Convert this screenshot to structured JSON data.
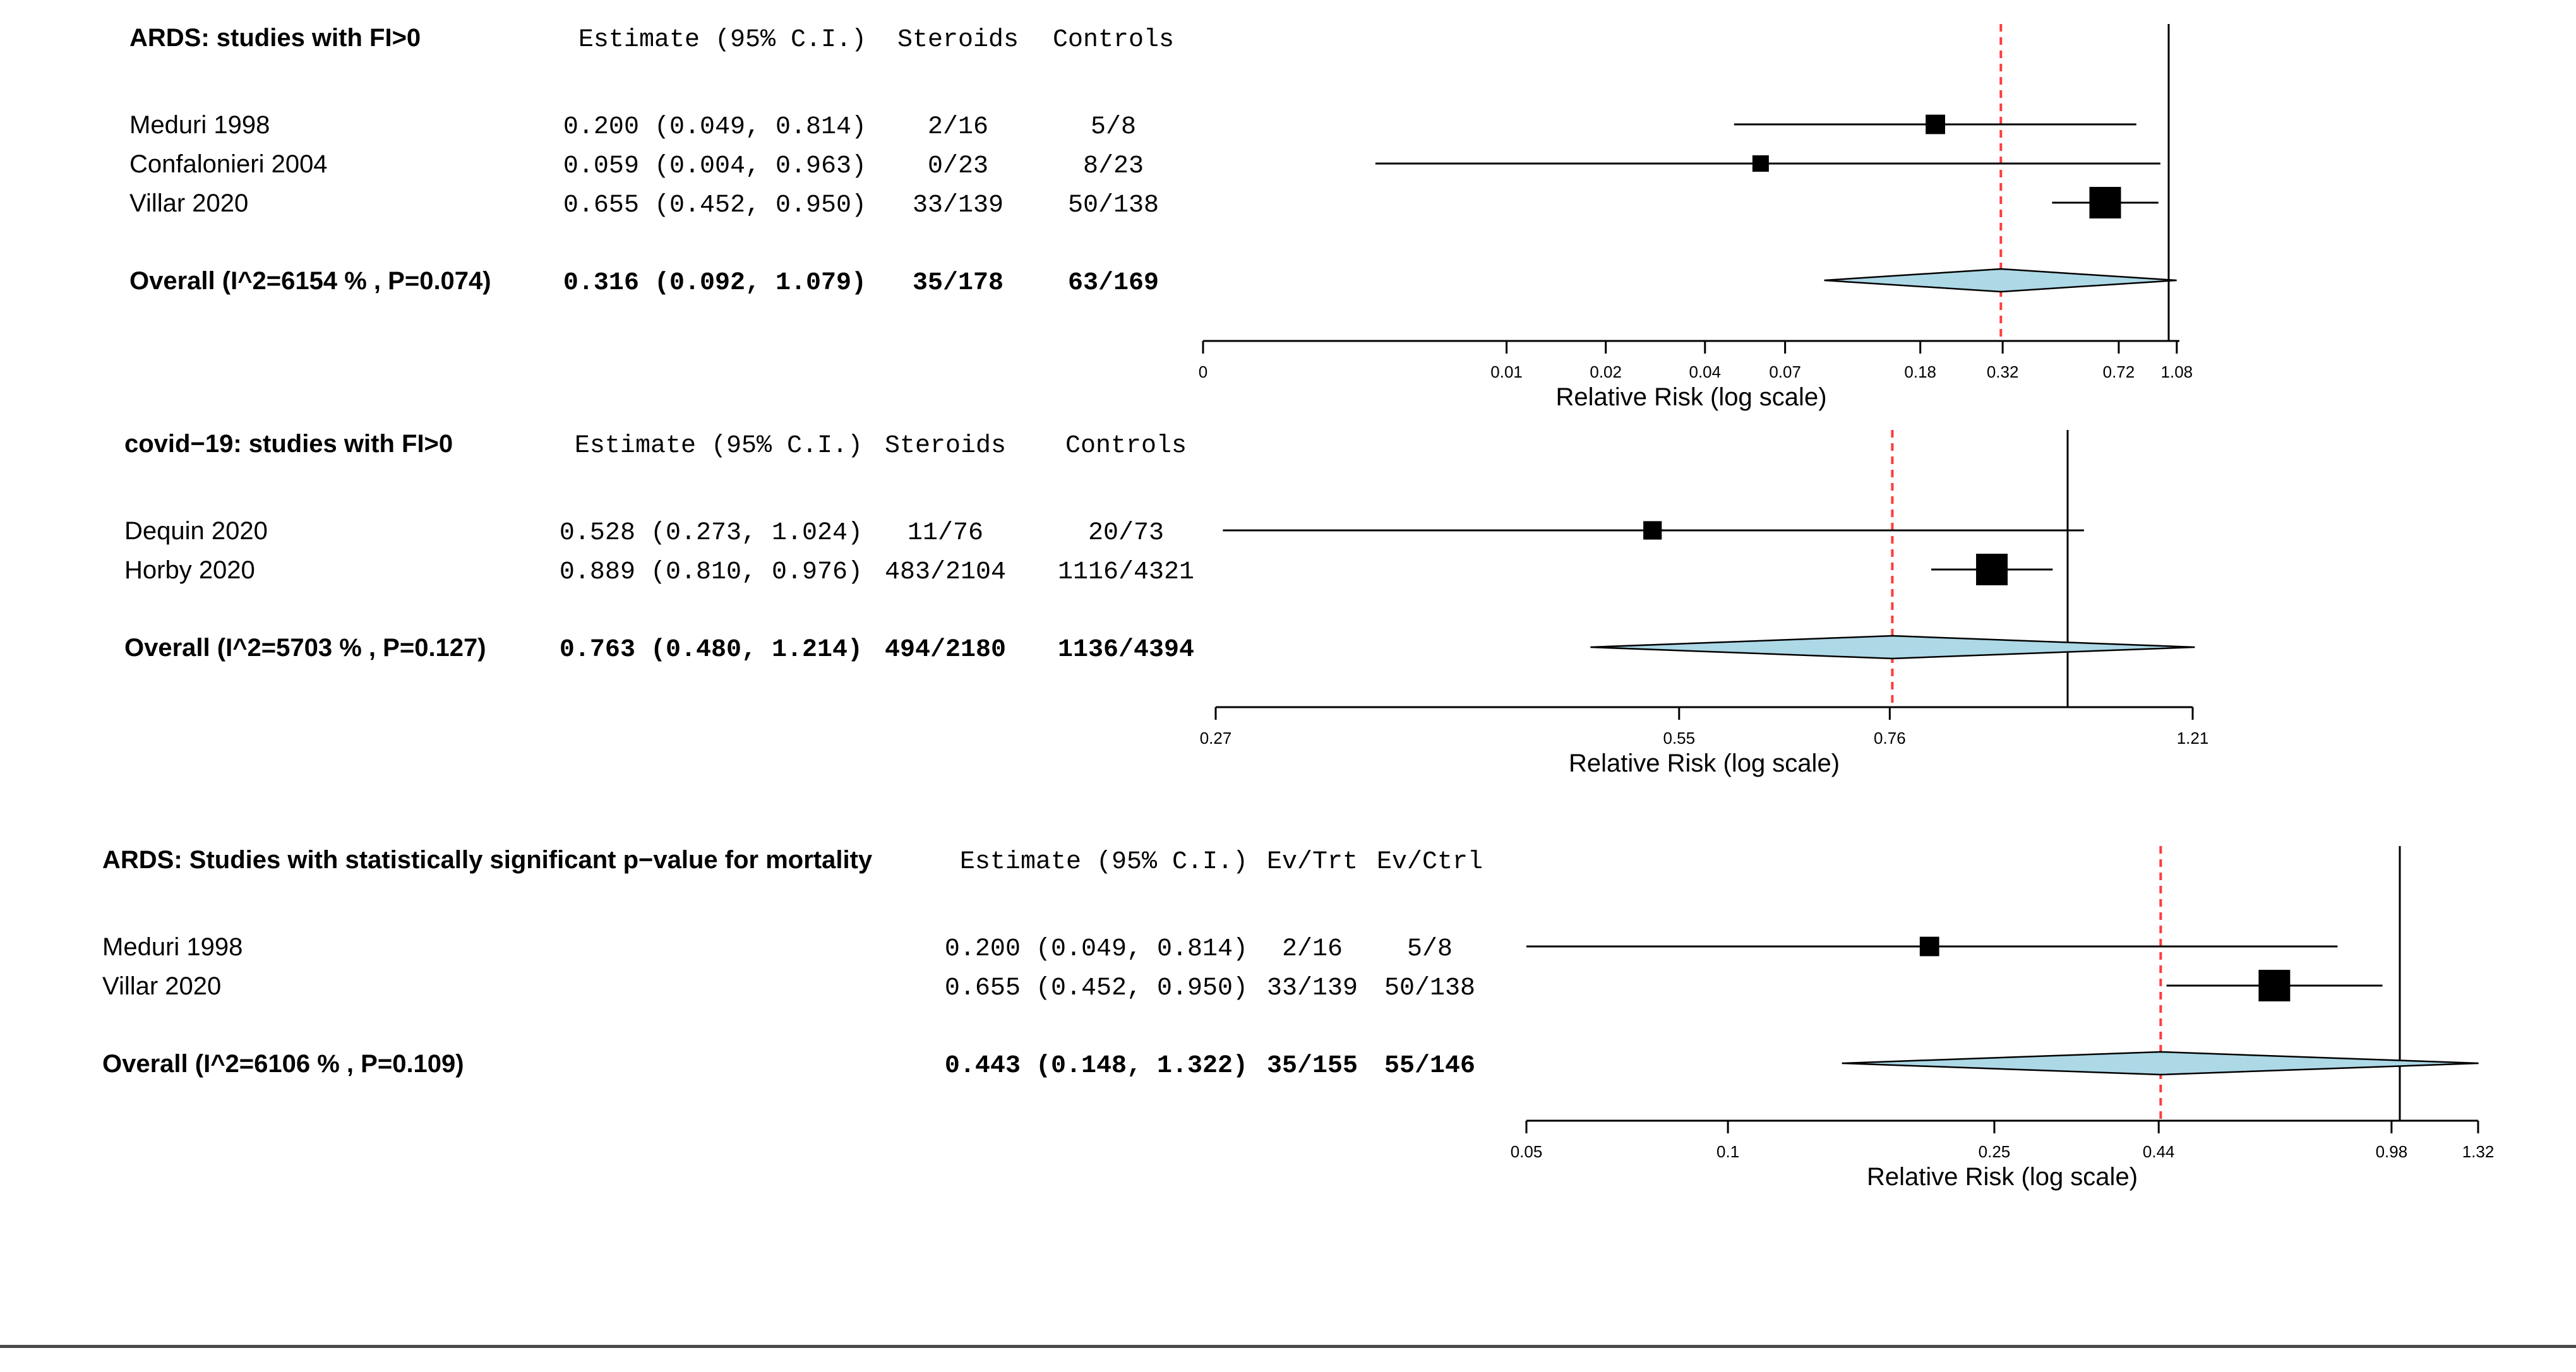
{
  "chart_data": [
    {
      "type": "forest",
      "title": "ARDS: studies with FI>0",
      "columns": {
        "estimate": "Estimate (95% C.I.)",
        "arm1": "Steroids",
        "arm2": "Controls"
      },
      "xlabel": "Relative Risk (log scale)",
      "xlim": [
        0.0012,
        1.1
      ],
      "ticks": [
        {
          "value": 0.0012,
          "label": "0"
        },
        {
          "value": 0.01,
          "label": "0.01"
        },
        {
          "value": 0.02,
          "label": "0.02"
        },
        {
          "value": 0.04,
          "label": "0.04"
        },
        {
          "value": 0.07,
          "label": "0.07"
        },
        {
          "value": 0.18,
          "label": "0.18"
        },
        {
          "value": 0.32,
          "label": "0.32"
        },
        {
          "value": 0.72,
          "label": "0.72"
        },
        {
          "value": 1.08,
          "label": "1.08"
        }
      ],
      "null_line": 1.0,
      "ref_line": 0.316,
      "studies": [
        {
          "name": "Meduri 1998",
          "estimate_text": "0.200 (0.049, 0.814)",
          "arm1": "2/16",
          "arm2": "5/8",
          "est": 0.2,
          "lo": 0.049,
          "hi": 0.814,
          "weight": 0.4
        },
        {
          "name": "Confalonieri 2004",
          "estimate_text": "0.059 (0.004, 0.963)",
          "arm1": "0/23",
          "arm2": "8/23",
          "est": 0.059,
          "lo": 0.004,
          "hi": 0.963,
          "weight": 0.25
        },
        {
          "name": "Villar 2020",
          "estimate_text": "0.655 (0.452, 0.950)",
          "arm1": "33/139",
          "arm2": "50/138",
          "est": 0.655,
          "lo": 0.452,
          "hi": 0.95,
          "weight": 1.0
        }
      ],
      "overall": {
        "name": "Overall (I^2=6154 % , P=0.074)",
        "estimate_text": "0.316 (0.092, 1.079)",
        "arm1": "35/178",
        "arm2": "63/169",
        "est": 0.316,
        "lo": 0.092,
        "hi": 1.079
      }
    },
    {
      "type": "forest",
      "title": "covid−19: studies with FI>0",
      "columns": {
        "estimate": "Estimate (95% C.I.)",
        "arm1": "Steroids",
        "arm2": "Controls"
      },
      "xlabel": "Relative Risk (log scale)",
      "xlim": [
        0.27,
        1.21
      ],
      "ticks": [
        {
          "value": 0.27,
          "label": "0.27"
        },
        {
          "value": 0.55,
          "label": "0.55"
        },
        {
          "value": 0.76,
          "label": "0.76"
        },
        {
          "value": 1.21,
          "label": "1.21"
        }
      ],
      "null_line": 1.0,
      "ref_line": 0.763,
      "studies": [
        {
          "name": "Dequin 2020",
          "estimate_text": "0.528 (0.273, 1.024)",
          "arm1": "11/76",
          "arm2": "20/73",
          "est": 0.528,
          "lo": 0.273,
          "hi": 1.024,
          "weight": 0.35
        },
        {
          "name": "Horby 2020",
          "estimate_text": "0.889 (0.810, 0.976)",
          "arm1": "483/2104",
          "arm2": "1116/4321",
          "est": 0.889,
          "lo": 0.81,
          "hi": 0.976,
          "weight": 1.0
        }
      ],
      "overall": {
        "name": "Overall (I^2=5703 % , P=0.127)",
        "estimate_text": "0.763 (0.480, 1.214)",
        "arm1": "494/2180",
        "arm2": "1136/4394",
        "est": 0.763,
        "lo": 0.48,
        "hi": 1.214
      }
    },
    {
      "type": "forest",
      "title": "ARDS: Studies with statistically significant p−value for mortality",
      "columns": {
        "estimate": "Estimate (95% C.I.)",
        "arm1": "Ev/Trt",
        "arm2": "Ev/Ctrl"
      },
      "xlabel": "Relative Risk (log scale)",
      "xlim": [
        0.05,
        1.32
      ],
      "ticks": [
        {
          "value": 0.05,
          "label": "0.05"
        },
        {
          "value": 0.1,
          "label": "0.1"
        },
        {
          "value": 0.25,
          "label": "0.25"
        },
        {
          "value": 0.44,
          "label": "0.44"
        },
        {
          "value": 0.98,
          "label": "0.98"
        },
        {
          "value": 1.32,
          "label": "1.32"
        }
      ],
      "null_line": 1.0,
      "ref_line": 0.443,
      "studies": [
        {
          "name": "Meduri 1998",
          "estimate_text": "0.200 (0.049, 0.814)",
          "arm1": "2/16",
          "arm2": "5/8",
          "est": 0.2,
          "lo": 0.049,
          "hi": 0.814,
          "weight": 0.4
        },
        {
          "name": "Villar 2020",
          "estimate_text": "0.655 (0.452, 0.950)",
          "arm1": "33/139",
          "arm2": "50/138",
          "est": 0.655,
          "lo": 0.452,
          "hi": 0.95,
          "weight": 1.0
        }
      ],
      "overall": {
        "name": "Overall (I^2=6106 % , P=0.109)",
        "estimate_text": "0.443 (0.148, 1.322)",
        "arm1": "35/155",
        "arm2": "55/146",
        "est": 0.443,
        "lo": 0.148,
        "hi": 1.322
      }
    }
  ],
  "colors": {
    "ink": "#000000",
    "diamond_fill": "#add8e6",
    "ref_line": "#ff3b3b",
    "rule": "#4a4a4a"
  }
}
